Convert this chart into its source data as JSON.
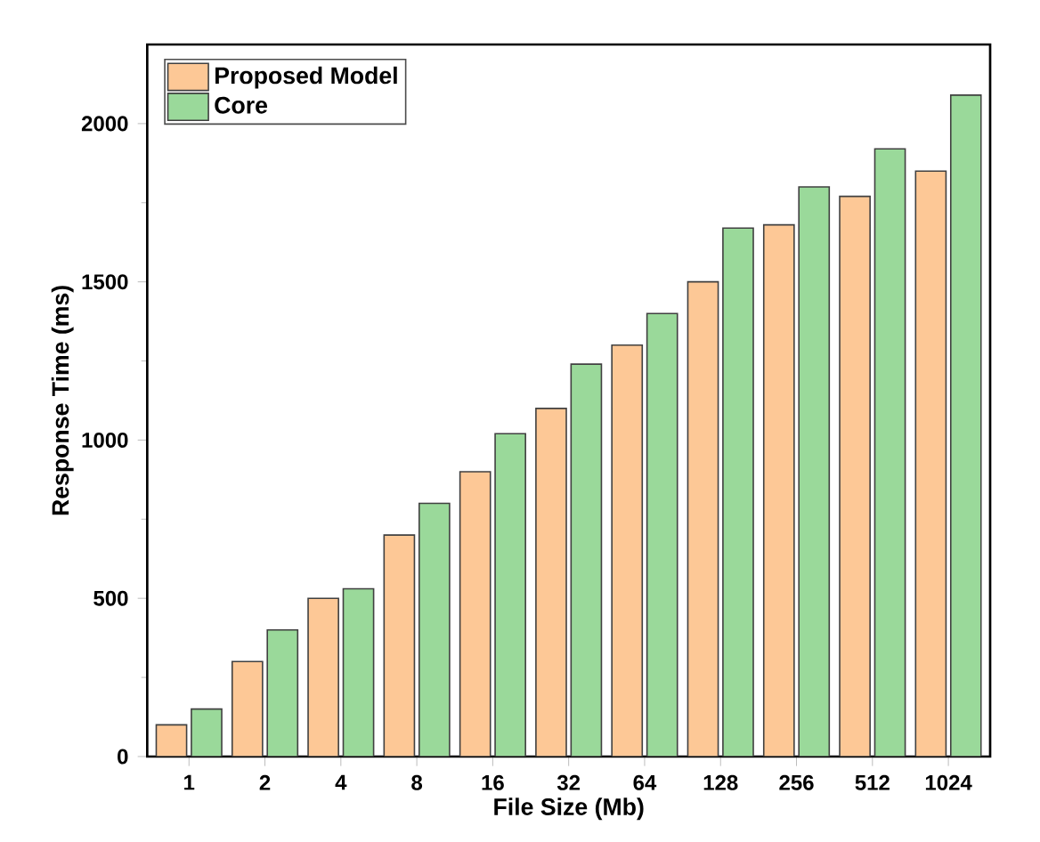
{
  "chart_data": {
    "type": "bar",
    "xlabel": "File Size (Mb)",
    "ylabel": "Response Time (ms)",
    "categories": [
      "1",
      "2",
      "4",
      "8",
      "16",
      "32",
      "64",
      "128",
      "256",
      "512",
      "1024"
    ],
    "series": [
      {
        "name": "Proposed Model",
        "color": "#fdc896",
        "values": [
          100,
          300,
          500,
          700,
          900,
          1100,
          1300,
          1500,
          1680,
          1770,
          1850
        ]
      },
      {
        "name": "Core",
        "color": "#9ad99a",
        "values": [
          150,
          400,
          530,
          800,
          1020,
          1240,
          1400,
          1670,
          1800,
          1920,
          2090
        ]
      }
    ],
    "ylim": [
      0,
      2250
    ],
    "yticks": [
      0,
      500,
      1000,
      1500,
      2000
    ],
    "legend": "top left",
    "grid": false
  }
}
